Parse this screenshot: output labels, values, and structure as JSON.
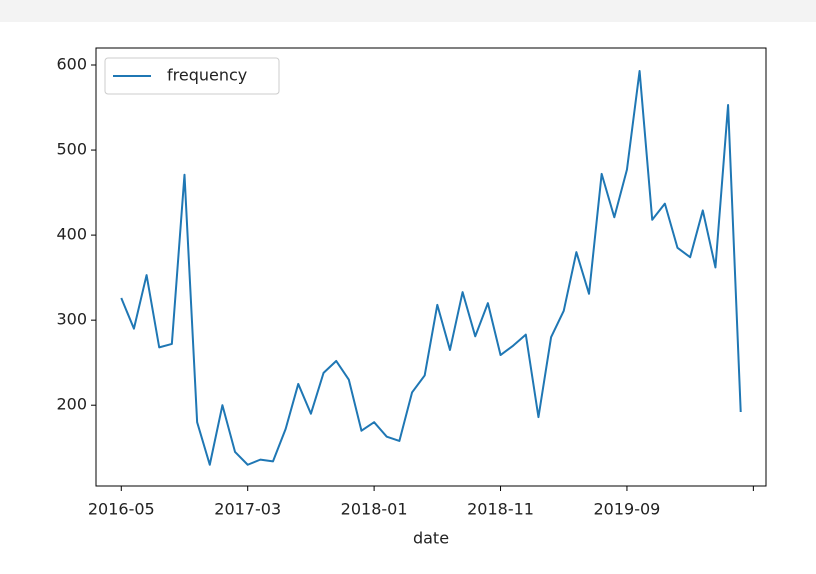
{
  "chart_data": {
    "type": "line",
    "xlabel": "date",
    "x": [
      "2016-05",
      "2016-06",
      "2016-07",
      "2016-08",
      "2016-09",
      "2016-10",
      "2016-11",
      "2016-12",
      "2017-01",
      "2017-02",
      "2017-03",
      "2017-04",
      "2017-05",
      "2017-06",
      "2017-07",
      "2017-08",
      "2017-09",
      "2017-10",
      "2017-11",
      "2017-12",
      "2018-01",
      "2018-02",
      "2018-03",
      "2018-04",
      "2018-05",
      "2018-06",
      "2018-07",
      "2018-08",
      "2018-09",
      "2018-10",
      "2018-11",
      "2018-12",
      "2019-01",
      "2019-02",
      "2019-03",
      "2019-04",
      "2019-05",
      "2019-06",
      "2019-07",
      "2019-08",
      "2019-09",
      "2019-10",
      "2019-11",
      "2019-12",
      "2020-01",
      "2020-02",
      "2020-03",
      "2020-04",
      "2020-05",
      "2020-06"
    ],
    "series": [
      {
        "name": "frequency",
        "color": "#1f77b4",
        "values": [
          326,
          290,
          353,
          268,
          272,
          471,
          180,
          130,
          200,
          145,
          130,
          136,
          134,
          172,
          225,
          190,
          238,
          252,
          230,
          170,
          180,
          163,
          158,
          215,
          235,
          318,
          265,
          333,
          281,
          320,
          259,
          270,
          283,
          186,
          280,
          311,
          380,
          331,
          472,
          421,
          477,
          593,
          418,
          437,
          385,
          374,
          429,
          362,
          553,
          192
        ]
      }
    ],
    "xlim": [
      "2016-03",
      "2020-08"
    ],
    "xticks": [
      "2016-05",
      "2017-03",
      "2018-01",
      "2018-11",
      "2019-09",
      {
        "value": "2020-07",
        "label": null
      }
    ],
    "ylim": [
      105,
      620
    ],
    "yticks": [
      200,
      300,
      400,
      500,
      600
    ],
    "legend": "upper left",
    "grid": false
  }
}
